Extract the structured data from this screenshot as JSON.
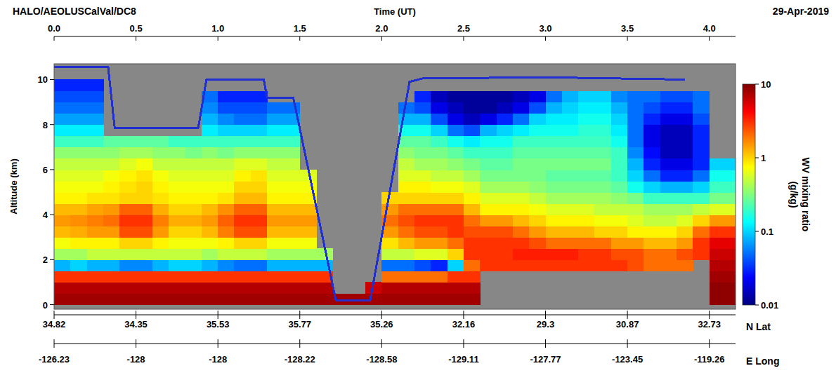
{
  "chart_data": {
    "type": "heatmap",
    "title": "HALO/AEOLUSCalVal/DC8",
    "subtitle": "29-Apr-2019",
    "x_label": "Time (UT)",
    "y_label": "Altitude (km)",
    "xlim": [
      0,
      4.16
    ],
    "xticks": [
      {
        "value": 0,
        "label": "0.0"
      },
      0.5,
      {
        "value": 1,
        "label": "1.0"
      },
      1.5,
      {
        "value": 2,
        "label": "2.0"
      },
      2.5,
      {
        "value": 3,
        "label": "3.0"
      },
      3.5,
      {
        "value": 4,
        "label": "4.0"
      }
    ],
    "ylim": [
      -0.2,
      10.7
    ],
    "yticks": [
      0,
      2,
      4,
      6,
      8,
      10
    ],
    "grid": false,
    "lat": {
      "label": "N Lat",
      "values": [
        34.82,
        34.35,
        35.53,
        35.77,
        35.26,
        32.16,
        29.3,
        30.87,
        32.73
      ]
    },
    "lon": {
      "label": "E Long",
      "values": [
        -126.23,
        -128,
        -128,
        -128.22,
        -128.58,
        -129.11,
        -127.77,
        -123.45,
        -119.26
      ]
    },
    "colorbar": {
      "label": "WV mixing ratio (g/kg)",
      "lim": [
        0.01,
        10
      ],
      "ticks": [
        0.01,
        0.1,
        1,
        10
      ],
      "log": true
    },
    "series": [
      {
        "type": "line",
        "color": "#1f2fd0",
        "x": [
          0,
          0.33,
          0.37,
          0.88,
          0.93,
          1.28,
          1.3,
          1.46,
          1.72,
          1.93,
          2.17,
          2.25,
          3.0,
          3.85
        ],
        "values": [
          10.55,
          10.55,
          7.85,
          7.85,
          10.0,
          10.0,
          9.2,
          9.2,
          0.2,
          0.2,
          9.9,
          10.05,
          10.1,
          10.0
        ]
      }
    ],
    "x_edges": [
      0,
      0.1,
      0.2,
      0.3,
      0.4,
      0.5,
      0.6,
      0.7,
      0.8,
      0.9,
      1.0,
      1.1,
      1.2,
      1.3,
      1.4,
      1.5,
      1.6,
      1.7,
      1.8,
      1.9,
      2.0,
      2.1,
      2.2,
      2.3,
      2.4,
      2.5,
      2.6,
      2.7,
      2.8,
      2.9,
      3.0,
      3.1,
      3.2,
      3.3,
      3.4,
      3.5,
      3.6,
      3.7,
      3.8,
      3.9,
      4.0,
      4.1,
      4.2
    ],
    "y_edges": [
      0,
      0.5,
      1.0,
      1.5,
      2.0,
      2.5,
      3.0,
      3.5,
      4.0,
      4.5,
      5.0,
      5.5,
      6.0,
      6.5,
      7.0,
      7.5,
      8.0,
      8.5,
      9.0,
      9.5,
      10.0,
      10.5
    ],
    "cells": [
      [
        8,
        7,
        3,
        0.08,
        0.4,
        0.7,
        1.2,
        1.5,
        1.2,
        0.8,
        0.7,
        0.6,
        0.5,
        0.35,
        0.2,
        0.12,
        0.07,
        0.05,
        0.04,
        0.03,
        null
      ],
      [
        8,
        7,
        3,
        0.1,
        0.4,
        0.8,
        1.3,
        1.6,
        1.2,
        0.8,
        0.7,
        0.6,
        0.5,
        0.35,
        0.2,
        0.12,
        0.07,
        0.05,
        0.04,
        0.03,
        null
      ],
      [
        8,
        7,
        3,
        0.08,
        0.5,
        0.8,
        1.5,
        1.8,
        1.4,
        0.9,
        0.7,
        0.6,
        0.5,
        0.35,
        0.2,
        0.12,
        0.07,
        0.05,
        0.04,
        0.03,
        null
      ],
      [
        8,
        7,
        3,
        0.08,
        0.5,
        0.8,
        1.5,
        2,
        1.5,
        0.9,
        0.8,
        0.7,
        0.5,
        0.35,
        0.25,
        null,
        null,
        null,
        null,
        null,
        null
      ],
      [
        8,
        7,
        3,
        0.06,
        0.5,
        1.0,
        2.5,
        3,
        2.2,
        1.0,
        0.9,
        0.8,
        0.6,
        0.4,
        0.25,
        null,
        null,
        null,
        null,
        null,
        null
      ],
      [
        8,
        7,
        3,
        0.06,
        0.5,
        1.0,
        2.5,
        3,
        2.2,
        1.0,
        1.0,
        0.9,
        0.7,
        0.4,
        0.25,
        null,
        null,
        null,
        null,
        null,
        null
      ],
      [
        8,
        7,
        3,
        0.08,
        0.5,
        0.8,
        1.5,
        1.8,
        1.3,
        0.9,
        0.8,
        0.7,
        0.5,
        0.35,
        0.25,
        null,
        null,
        null,
        null,
        null,
        null
      ],
      [
        8,
        7,
        3,
        0.1,
        0.5,
        0.7,
        1.0,
        1.3,
        1.0,
        0.8,
        0.7,
        0.6,
        0.5,
        0.35,
        0.2,
        null,
        null,
        null,
        null,
        null,
        null
      ],
      [
        8,
        7,
        3,
        0.1,
        0.5,
        0.7,
        1.0,
        1.3,
        1.0,
        0.8,
        0.7,
        0.6,
        0.5,
        0.3,
        0.2,
        null,
        null,
        null,
        null,
        null,
        null
      ],
      [
        8,
        7,
        3,
        0.08,
        0.4,
        0.7,
        1.2,
        1.5,
        1.2,
        0.8,
        0.7,
        0.6,
        0.5,
        0.35,
        0.2,
        0.12,
        0.08,
        0.06,
        0.05,
        null,
        null
      ],
      [
        8,
        7,
        3,
        0.06,
        0.5,
        0.8,
        1.8,
        2.2,
        1.6,
        0.9,
        0.7,
        0.6,
        0.5,
        0.3,
        0.2,
        0.1,
        0.06,
        0.04,
        0.03,
        null,
        null
      ],
      [
        8,
        7,
        3,
        0.05,
        0.5,
        1.0,
        2.5,
        3,
        2.2,
        1.2,
        1.0,
        0.8,
        0.6,
        0.35,
        0.2,
        0.1,
        0.05,
        0.04,
        0.03,
        null,
        null
      ],
      [
        8,
        7,
        3,
        0.05,
        0.5,
        1.0,
        2.5,
        3,
        2.2,
        1.2,
        1.0,
        0.9,
        0.6,
        0.35,
        0.2,
        0.1,
        0.05,
        0.04,
        0.03,
        null,
        null
      ],
      [
        8,
        7,
        3,
        0.08,
        0.4,
        0.7,
        1.2,
        1.5,
        1.2,
        0.8,
        0.7,
        0.6,
        0.5,
        0.35,
        0.2,
        0.12,
        0.07,
        0.05,
        null,
        null,
        null
      ],
      [
        8,
        7,
        3,
        0.08,
        0.4,
        0.7,
        1.2,
        1.5,
        1.2,
        0.8,
        0.7,
        0.6,
        0.5,
        0.35,
        0.2,
        0.12,
        0.07,
        0.05,
        null,
        null,
        null
      ],
      [
        8,
        7,
        3,
        0.08,
        0.4,
        0.7,
        1.2,
        1.5,
        1.2,
        0.8,
        0.7,
        0.6,
        null,
        null,
        null,
        null,
        null,
        null,
        null,
        null,
        null
      ],
      [
        8,
        7,
        3,
        0.08,
        0.4,
        null,
        null,
        null,
        null,
        null,
        null,
        null,
        null,
        null,
        null,
        null,
        null,
        null,
        null,
        null,
        null
      ],
      [
        8,
        null,
        null,
        null,
        null,
        null,
        null,
        null,
        null,
        null,
        null,
        null,
        null,
        null,
        null,
        null,
        null,
        null,
        null,
        null,
        null
      ],
      [
        8,
        null,
        null,
        null,
        null,
        null,
        null,
        null,
        null,
        null,
        null,
        null,
        null,
        null,
        null,
        null,
        null,
        null,
        null,
        null,
        null
      ],
      [
        8,
        6,
        null,
        null,
        null,
        null,
        null,
        null,
        null,
        null,
        null,
        null,
        null,
        null,
        null,
        null,
        null,
        null,
        null,
        null,
        null
      ],
      [
        8,
        7,
        2,
        0.05,
        0.5,
        0.9,
        1.5,
        2,
        1.5,
        1.0,
        null,
        null,
        null,
        null,
        null,
        null,
        null,
        null,
        null,
        null,
        null
      ],
      [
        8,
        7,
        2,
        0.05,
        0.5,
        1.2,
        2,
        2.5,
        2,
        1.0,
        0.8,
        0.6,
        0.5,
        0.35,
        0.25,
        0.15,
        0.08,
        0.05,
        null,
        null,
        null
      ],
      [
        8,
        7,
        2,
        0.04,
        0.6,
        1.5,
        2.5,
        3,
        2,
        1.0,
        0.8,
        0.6,
        0.4,
        0.3,
        0.25,
        0.15,
        0.08,
        0.04,
        0.03,
        null,
        null
      ],
      [
        8,
        7,
        2,
        0.03,
        0.6,
        1.5,
        2.5,
        3,
        2,
        1.0,
        0.7,
        0.5,
        0.4,
        0.3,
        0.2,
        0.1,
        0.04,
        0.02,
        0.015,
        null,
        null
      ],
      [
        8,
        7,
        3,
        0.1,
        1.0,
        2,
        3,
        3,
        2,
        1.0,
        0.7,
        0.5,
        0.35,
        0.25,
        0.15,
        0.05,
        0.02,
        0.015,
        0.012,
        null,
        null
      ],
      [
        8,
        7,
        3,
        2,
        3,
        3,
        2.5,
        2,
        1.2,
        0.8,
        0.6,
        0.4,
        0.3,
        0.2,
        0.12,
        0.04,
        0.015,
        0.012,
        0.012,
        null,
        null
      ],
      [
        null,
        null,
        null,
        3,
        3,
        3,
        2.5,
        1.5,
        0.8,
        0.6,
        0.4,
        0.3,
        0.25,
        0.2,
        0.15,
        0.08,
        0.02,
        0.012,
        0.012,
        null,
        null
      ],
      [
        null,
        null,
        null,
        3,
        3,
        3,
        2.5,
        1.5,
        0.8,
        0.6,
        0.4,
        0.3,
        0.25,
        0.2,
        0.15,
        0.1,
        0.03,
        0.015,
        0.012,
        null,
        null
      ],
      [
        null,
        null,
        null,
        3,
        3.5,
        3,
        2,
        1.2,
        0.8,
        0.6,
        0.4,
        0.3,
        0.3,
        0.25,
        0.2,
        0.12,
        0.05,
        0.02,
        0.015,
        null,
        null
      ],
      [
        null,
        null,
        null,
        3,
        3.5,
        2.5,
        1.5,
        1.0,
        0.7,
        0.5,
        0.35,
        0.3,
        0.3,
        0.25,
        0.2,
        0.15,
        0.1,
        0.04,
        0.02,
        null,
        null
      ],
      [
        null,
        null,
        null,
        3,
        3.5,
        2,
        1.2,
        0.8,
        0.6,
        0.4,
        0.3,
        0.25,
        0.3,
        0.25,
        0.2,
        0.15,
        0.12,
        0.08,
        0.05,
        null,
        null
      ],
      [
        null,
        null,
        null,
        3,
        3.5,
        2,
        1.2,
        0.8,
        0.6,
        0.4,
        0.3,
        0.25,
        0.3,
        0.25,
        0.2,
        0.15,
        0.12,
        0.1,
        0.08,
        null,
        null
      ],
      [
        null,
        null,
        null,
        3,
        3,
        2,
        1.2,
        0.8,
        0.6,
        0.4,
        0.3,
        0.25,
        0.3,
        0.25,
        0.2,
        0.18,
        0.15,
        0.12,
        0.1,
        null,
        null
      ],
      [
        null,
        null,
        null,
        3,
        3,
        2,
        1.0,
        0.7,
        0.5,
        0.4,
        0.3,
        0.25,
        0.3,
        0.25,
        0.2,
        0.18,
        0.15,
        0.12,
        0.1,
        null,
        null
      ],
      [
        null,
        null,
        null,
        3,
        2.5,
        1.5,
        1.0,
        0.7,
        0.5,
        0.35,
        0.25,
        0.2,
        0.2,
        0.2,
        0.15,
        0.12,
        0.1,
        0.08,
        0.06,
        null,
        null
      ],
      [
        null,
        null,
        null,
        2.5,
        2.5,
        1.5,
        0.8,
        0.6,
        0.5,
        0.3,
        0.15,
        0.1,
        0.08,
        0.06,
        0.05,
        0.05,
        0.05,
        0.05,
        0.05,
        null,
        null
      ],
      [
        null,
        null,
        null,
        2,
        2,
        1.2,
        0.8,
        0.5,
        0.4,
        0.2,
        0.1,
        0.05,
        0.03,
        0.025,
        0.02,
        0.02,
        0.03,
        0.04,
        0.05,
        null,
        null
      ],
      [
        null,
        null,
        null,
        2,
        2,
        1.2,
        0.8,
        0.5,
        0.4,
        0.2,
        0.08,
        0.03,
        0.02,
        0.015,
        0.015,
        0.015,
        0.02,
        0.03,
        0.04,
        null,
        null
      ],
      [
        null,
        null,
        null,
        2,
        2.5,
        1.5,
        1.0,
        0.6,
        0.4,
        0.2,
        0.08,
        0.03,
        0.02,
        0.015,
        0.015,
        0.015,
        0.02,
        0.03,
        0.04,
        null,
        null
      ],
      [
        null,
        null,
        null,
        null,
        3,
        3,
        2,
        1,
        0.5,
        0.2,
        0.1,
        0.05,
        0.03,
        0.03,
        0.03,
        0.03,
        0.04,
        0.05,
        0.05,
        null,
        null
      ],
      [
        9,
        9,
        8,
        7,
        6,
        5,
        3,
        1.5,
        0.6,
        0.3,
        0.2,
        0.15,
        0.1,
        null,
        null,
        null,
        null,
        null,
        null,
        null,
        null
      ],
      [
        9,
        9,
        8,
        7,
        6,
        5,
        3,
        1.5,
        0.6,
        0.3,
        0.2,
        0.15,
        0.1,
        null,
        null,
        null,
        null,
        null,
        null,
        null,
        null
      ]
    ]
  }
}
